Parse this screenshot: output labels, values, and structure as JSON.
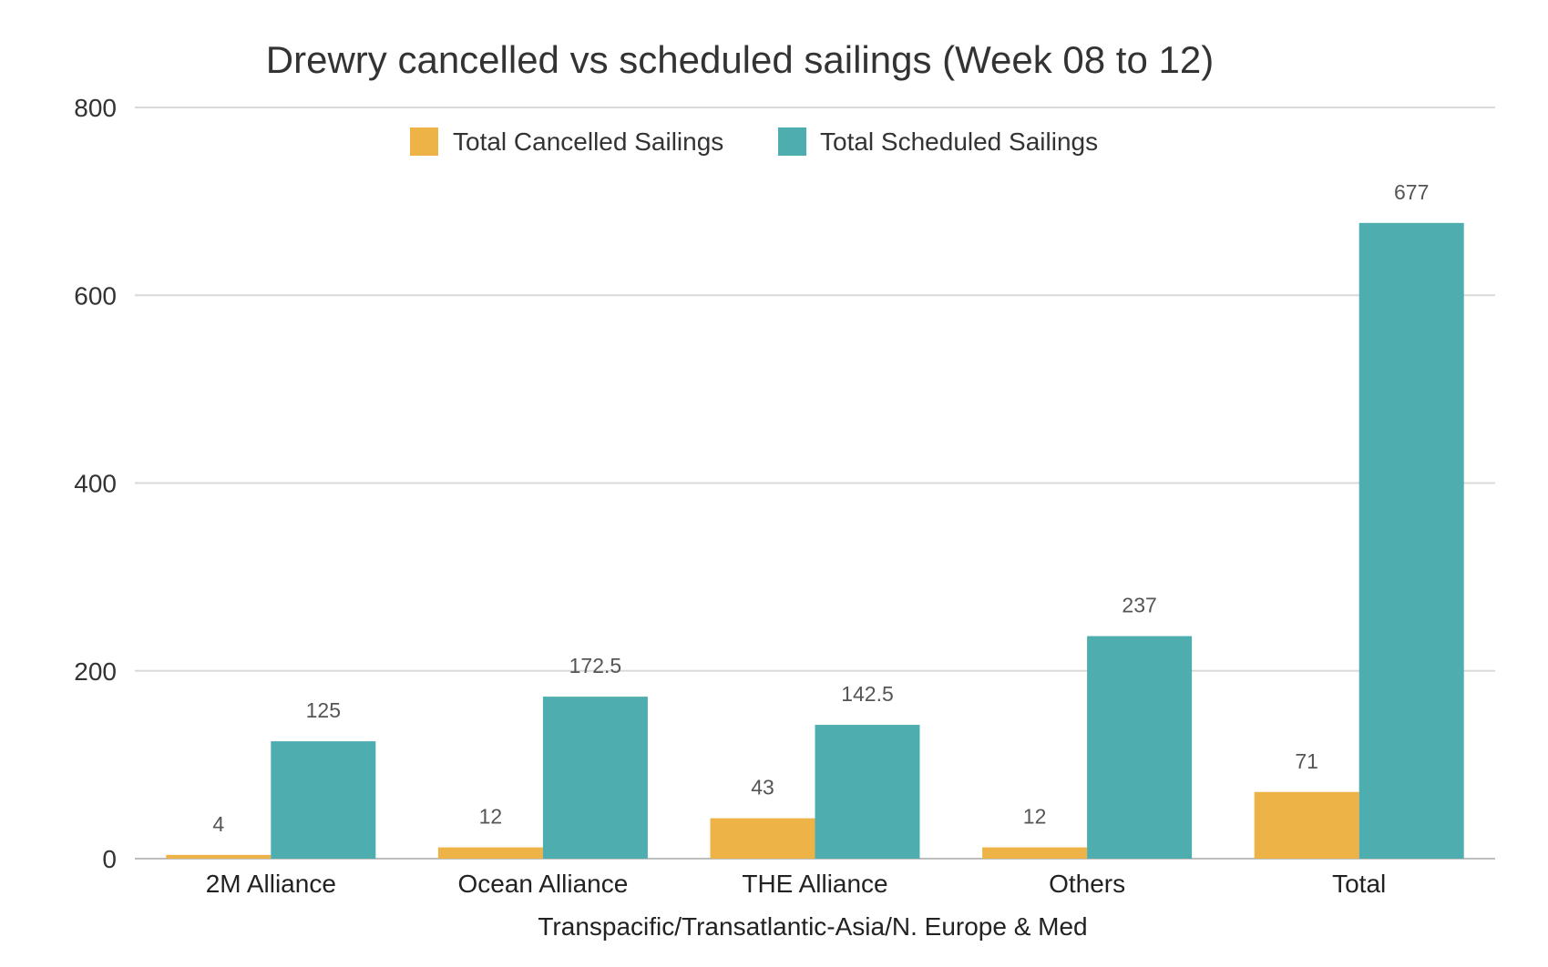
{
  "chart_data": {
    "type": "bar",
    "title": "Drewry cancelled vs scheduled sailings (Week 08 to 12)",
    "xlabel": "Transpacific/Transatlantic-Asia/N. Europe & Med",
    "ylabel": "",
    "ylim": [
      0,
      800
    ],
    "yticks": [
      "0",
      "200",
      "400",
      "600",
      "800"
    ],
    "grid": true,
    "legend_position": "top-center",
    "categories": [
      "2M Alliance",
      "Ocean Alliance",
      "THE Alliance",
      "Others",
      "Total"
    ],
    "series": [
      {
        "name": "Total Cancelled Sailings",
        "color": "#EDB347",
        "values": [
          4,
          12,
          43,
          12,
          71
        ],
        "labels": [
          "4",
          "12",
          "43",
          "12",
          "71"
        ]
      },
      {
        "name": "Total Scheduled Sailings",
        "color": "#4EADAF",
        "values": [
          125,
          172.5,
          142.5,
          237,
          677
        ],
        "labels": [
          "125",
          "172.5",
          "142.5",
          "237",
          "677"
        ]
      }
    ]
  }
}
